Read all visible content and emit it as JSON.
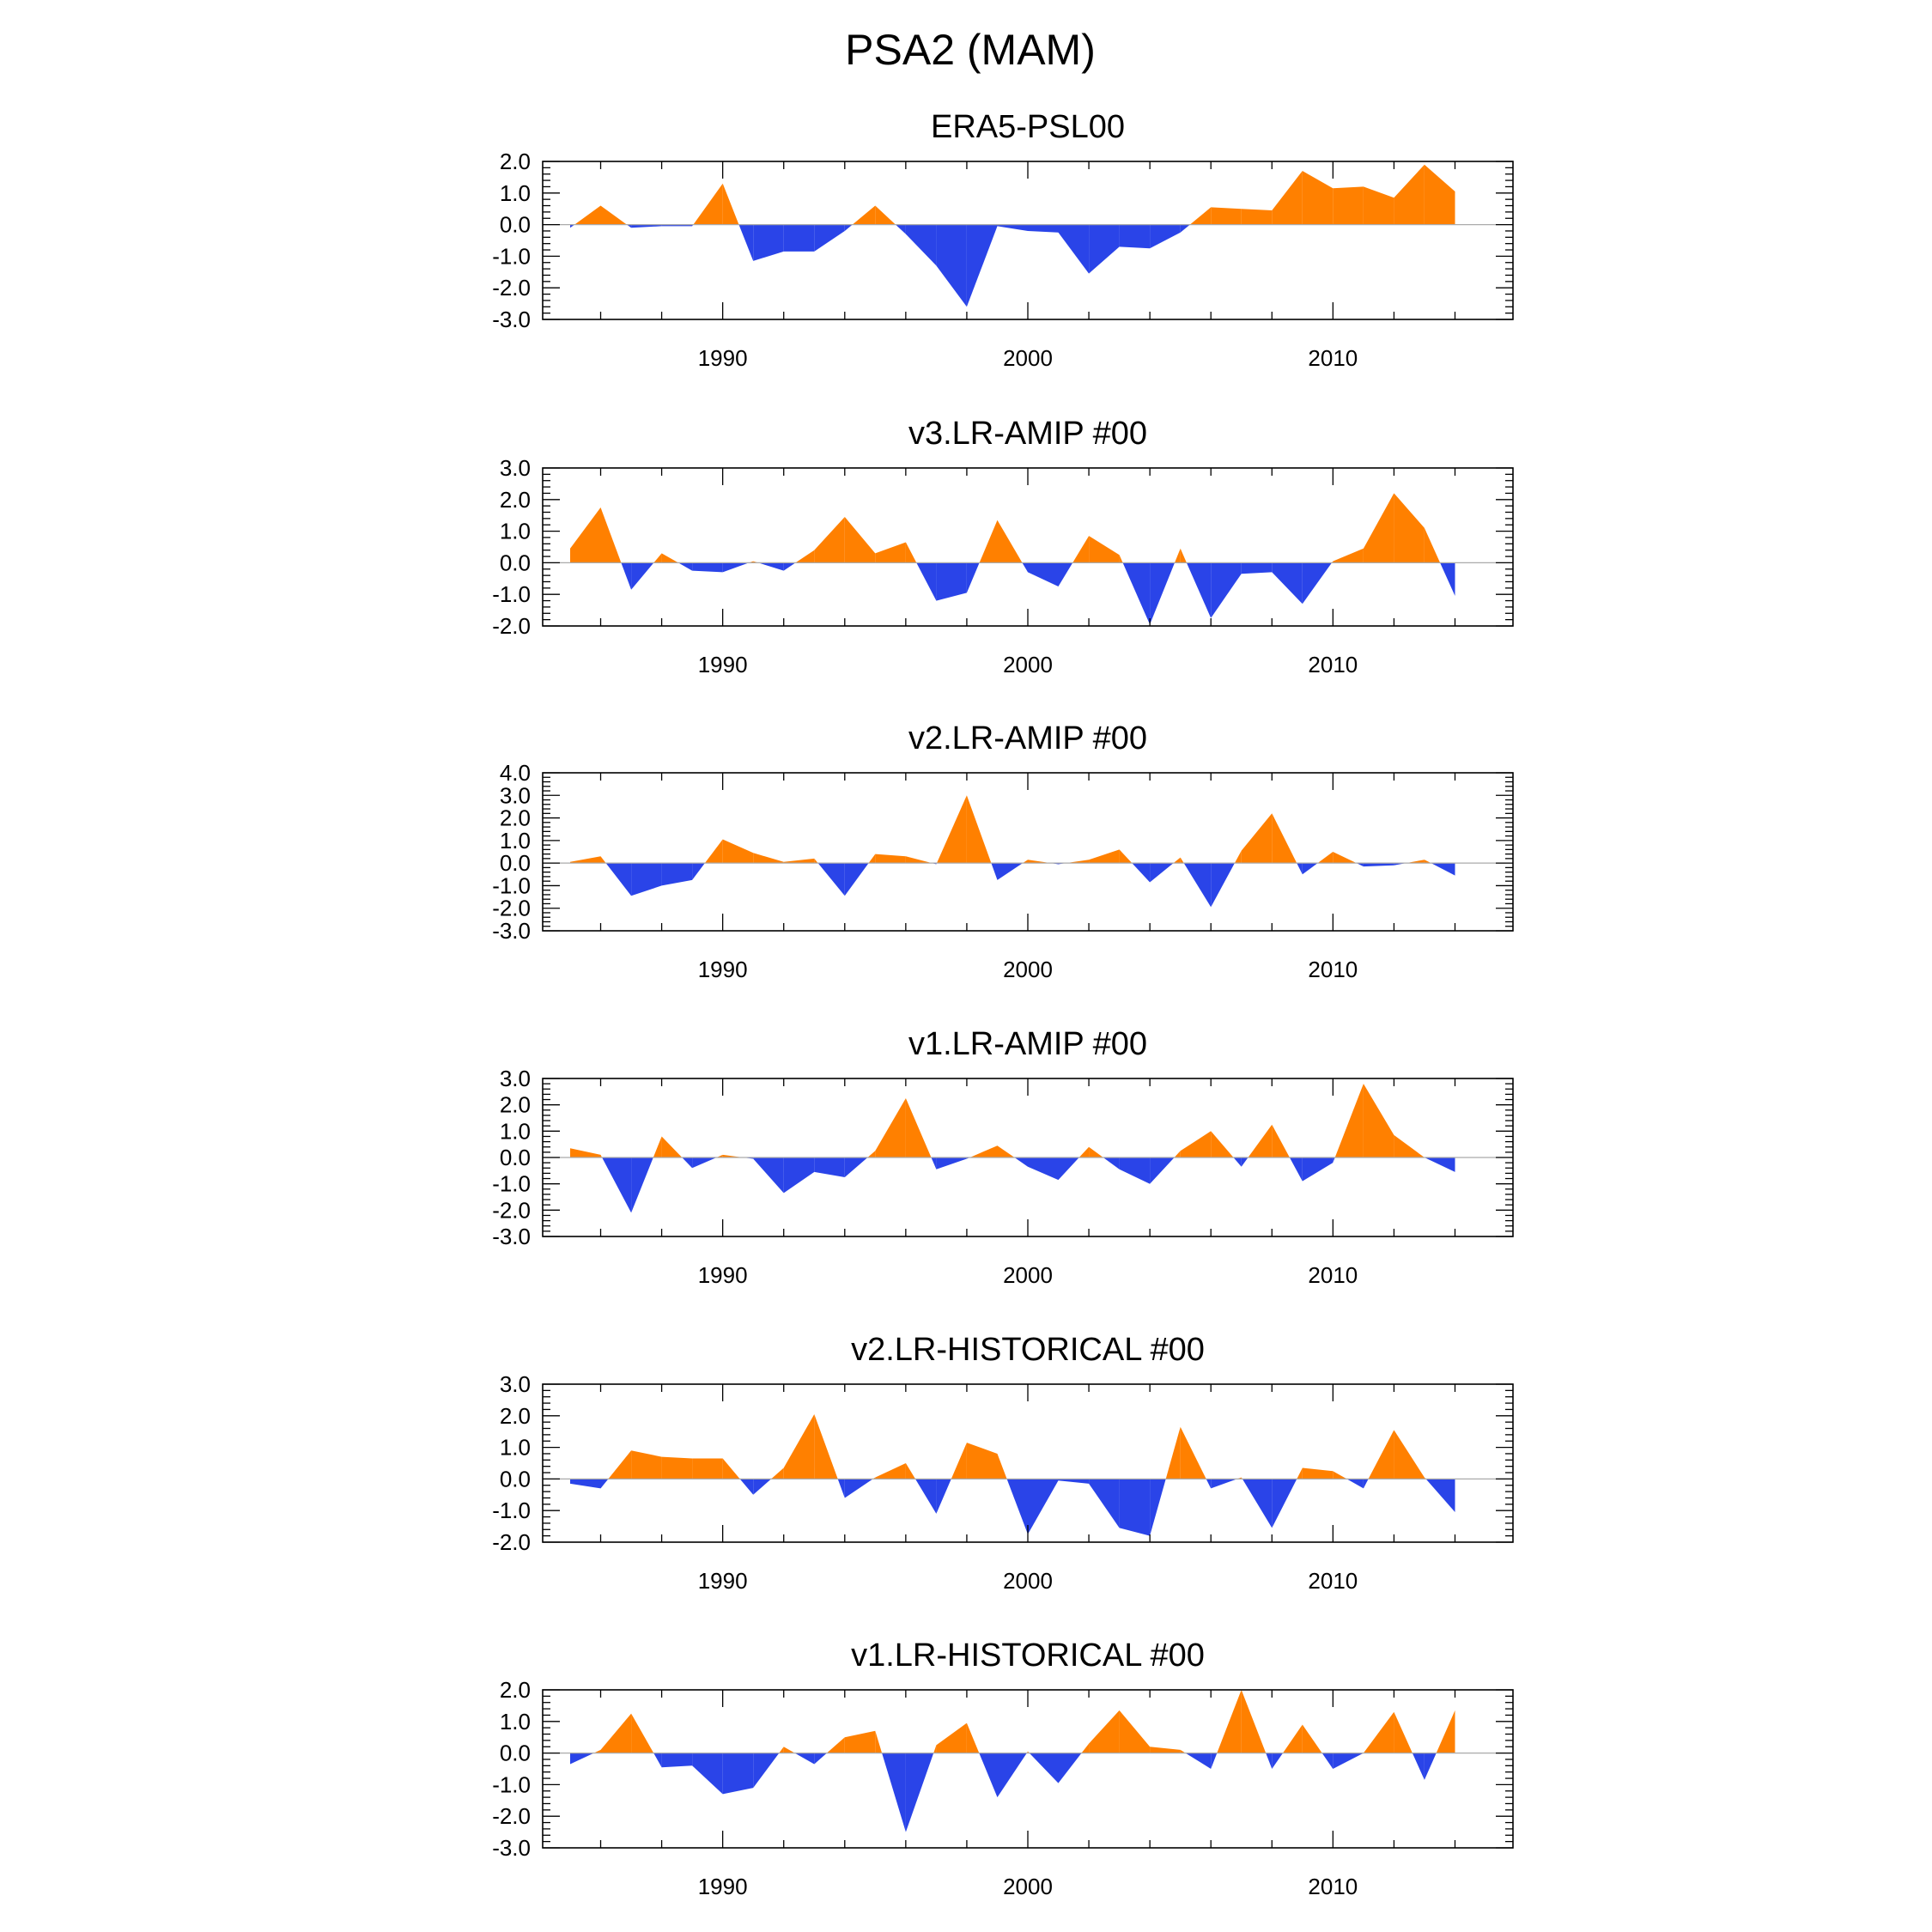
{
  "figure_title": "PSA2 (MAM)",
  "colors": {
    "positive": "#ff8000",
    "negative": "#2a44e8",
    "axis": "#000000",
    "zero_line": "#aaaaaa"
  },
  "chart_data": [
    {
      "type": "area",
      "title": "ERA5-PSL00",
      "x": [
        1985,
        1986,
        1987,
        1988,
        1989,
        1990,
        1991,
        1992,
        1993,
        1994,
        1995,
        1996,
        1997,
        1998,
        1999,
        2000,
        2001,
        2002,
        2003,
        2004,
        2005,
        2006,
        2007,
        2008,
        2009,
        2010,
        2011,
        2012,
        2013,
        2014
      ],
      "values": [
        -0.1,
        0.6,
        -0.1,
        -0.05,
        -0.05,
        1.3,
        -1.15,
        -0.85,
        -0.85,
        -0.2,
        0.6,
        -0.3,
        -1.3,
        -2.6,
        -0.05,
        -0.2,
        -0.25,
        -1.55,
        -0.7,
        -0.75,
        -0.25,
        0.55,
        0.5,
        0.45,
        1.7,
        1.15,
        1.2,
        0.85,
        1.9,
        1.05
      ],
      "ylim": [
        -3.0,
        2.0
      ],
      "yticks": [
        "-3.0",
        "-2.0",
        "-1.0",
        "0.0",
        "1.0",
        "2.0"
      ],
      "xlim": [
        1984.1,
        2015.9
      ],
      "xticks": [
        "1990",
        "2000",
        "2010"
      ]
    },
    {
      "type": "area",
      "title": "v3.LR-AMIP  #00",
      "x": [
        1985,
        1986,
        1987,
        1988,
        1989,
        1990,
        1991,
        1992,
        1993,
        1994,
        1995,
        1996,
        1997,
        1998,
        1999,
        2000,
        2001,
        2002,
        2003,
        2004,
        2005,
        2006,
        2007,
        2008,
        2009,
        2010,
        2011,
        2012,
        2013,
        2014
      ],
      "values": [
        0.45,
        1.75,
        -0.85,
        0.3,
        -0.25,
        -0.3,
        0.05,
        -0.25,
        0.4,
        1.45,
        0.3,
        0.65,
        -1.2,
        -0.95,
        1.35,
        -0.3,
        -0.75,
        0.85,
        0.25,
        -1.95,
        0.45,
        -1.75,
        -0.35,
        -0.3,
        -1.3,
        0.05,
        0.45,
        2.2,
        1.1,
        -1.05
      ],
      "ylim": [
        -2.0,
        3.0
      ],
      "yticks": [
        "-2.0",
        "-1.0",
        "0.0",
        "1.0",
        "2.0",
        "3.0"
      ],
      "xlim": [
        1984.1,
        2015.9
      ],
      "xticks": [
        "1990",
        "2000",
        "2010"
      ]
    },
    {
      "type": "area",
      "title": "v2.LR-AMIP  #00",
      "x": [
        1985,
        1986,
        1987,
        1988,
        1989,
        1990,
        1991,
        1992,
        1993,
        1994,
        1995,
        1996,
        1997,
        1998,
        1999,
        2000,
        2001,
        2002,
        2003,
        2004,
        2005,
        2006,
        2007,
        2008,
        2009,
        2010,
        2011,
        2012,
        2013,
        2014
      ],
      "values": [
        0.05,
        0.3,
        -1.45,
        -1.0,
        -0.75,
        1.05,
        0.45,
        0.05,
        0.2,
        -1.45,
        0.4,
        0.3,
        -0.05,
        3.0,
        -0.75,
        0.15,
        -0.05,
        0.15,
        0.6,
        -0.85,
        0.25,
        -1.95,
        0.55,
        2.2,
        -0.5,
        0.5,
        -0.15,
        -0.1,
        0.15,
        -0.55
      ],
      "ylim": [
        -3.0,
        4.0
      ],
      "yticks": [
        "-3.0",
        "-2.0",
        "-1.0",
        "0.0",
        "1.0",
        "2.0",
        "3.0",
        "4.0"
      ],
      "xlim": [
        1984.1,
        2015.9
      ],
      "xticks": [
        "1990",
        "2000",
        "2010"
      ]
    },
    {
      "type": "area",
      "title": "v1.LR-AMIP  #00",
      "x": [
        1985,
        1986,
        1987,
        1988,
        1989,
        1990,
        1991,
        1992,
        1993,
        1994,
        1995,
        1996,
        1997,
        1998,
        1999,
        2000,
        2001,
        2002,
        2003,
        2004,
        2005,
        2006,
        2007,
        2008,
        2009,
        2010,
        2011,
        2012,
        2013,
        2014
      ],
      "values": [
        0.35,
        0.1,
        -2.1,
        0.8,
        -0.4,
        0.1,
        -0.05,
        -1.35,
        -0.55,
        -0.75,
        0.25,
        2.25,
        -0.45,
        -0.05,
        0.45,
        -0.35,
        -0.85,
        0.4,
        -0.45,
        -1.0,
        0.25,
        1.0,
        -0.35,
        1.25,
        -0.9,
        -0.2,
        2.8,
        0.85,
        0.0,
        -0.55
      ],
      "ylim": [
        -3.0,
        3.0
      ],
      "yticks": [
        "-3.0",
        "-2.0",
        "-1.0",
        "0.0",
        "1.0",
        "2.0",
        "3.0"
      ],
      "xlim": [
        1984.1,
        2015.9
      ],
      "xticks": [
        "1990",
        "2000",
        "2010"
      ]
    },
    {
      "type": "area",
      "title": "v2.LR-HISTORICAL  #00",
      "x": [
        1985,
        1986,
        1987,
        1988,
        1989,
        1990,
        1991,
        1992,
        1993,
        1994,
        1995,
        1996,
        1997,
        1998,
        1999,
        2000,
        2001,
        2002,
        2003,
        2004,
        2005,
        2006,
        2007,
        2008,
        2009,
        2010,
        2011,
        2012,
        2013,
        2014
      ],
      "values": [
        -0.15,
        -0.3,
        0.9,
        0.7,
        0.65,
        0.65,
        -0.5,
        0.35,
        2.05,
        -0.6,
        0.05,
        0.5,
        -1.1,
        1.15,
        0.8,
        -1.75,
        -0.05,
        -0.15,
        -1.55,
        -1.8,
        1.65,
        -0.3,
        0.05,
        -1.55,
        0.35,
        0.25,
        -0.3,
        1.55,
        0.05,
        -1.05
      ],
      "ylim": [
        -2.0,
        3.0
      ],
      "yticks": [
        "-2.0",
        "-1.0",
        "0.0",
        "1.0",
        "2.0",
        "3.0"
      ],
      "xlim": [
        1984.1,
        2015.9
      ],
      "xticks": [
        "1990",
        "2000",
        "2010"
      ]
    },
    {
      "type": "area",
      "title": "v1.LR-HISTORICAL  #00",
      "x": [
        1985,
        1986,
        1987,
        1988,
        1989,
        1990,
        1991,
        1992,
        1993,
        1994,
        1995,
        1996,
        1997,
        1998,
        1999,
        2000,
        2001,
        2002,
        2003,
        2004,
        2005,
        2006,
        2007,
        2008,
        2009,
        2010,
        2011,
        2012,
        2013,
        2014
      ],
      "values": [
        -0.35,
        0.1,
        1.25,
        -0.45,
        -0.4,
        -1.3,
        -1.1,
        0.2,
        -0.35,
        0.5,
        0.7,
        -2.5,
        0.25,
        0.95,
        -1.4,
        0.05,
        -0.95,
        0.3,
        1.35,
        0.2,
        0.1,
        -0.5,
        2.0,
        -0.5,
        0.9,
        -0.5,
        0.0,
        1.3,
        -0.85,
        1.35
      ],
      "ylim": [
        -3.0,
        2.0
      ],
      "yticks": [
        "-3.0",
        "-2.0",
        "-1.0",
        "0.0",
        "1.0",
        "2.0"
      ],
      "xlim": [
        1984.1,
        2015.9
      ],
      "xticks": [
        "1990",
        "2000",
        "2010"
      ]
    }
  ]
}
